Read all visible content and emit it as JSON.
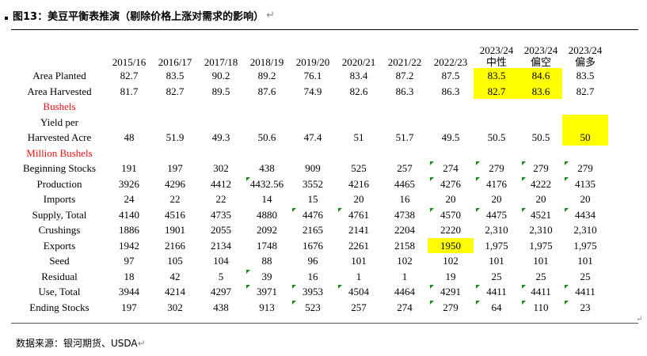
{
  "title": "图13：美豆平衡表推演（剔除价格上涨对需求的影响）",
  "para_mark": "↵",
  "source": "数据来源：银河期货、USDA",
  "columns": [
    "2015/16",
    "2016/17",
    "2017/18",
    "2018/19",
    "2019/20",
    "2020/21",
    "2021/22",
    "2022/23",
    "2023/24\n中性",
    "2023/24\n偏空",
    "2023/24\n偏多"
  ],
  "rows": [
    {
      "label": "Area Planted",
      "values": [
        "82.7",
        "83.5",
        "90.2",
        "89.2",
        "76.1",
        "83.4",
        "87.2",
        "87.5",
        "83.5",
        "84.6",
        "83.5"
      ],
      "highlight": [
        8,
        9
      ],
      "markers": []
    },
    {
      "label": "Area Harvested",
      "values": [
        "81.7",
        "82.7",
        "89.5",
        "87.6",
        "74.9",
        "82.6",
        "86.3",
        "86.3",
        "82.7",
        "83.6",
        "82.7"
      ],
      "highlight": [
        8,
        9
      ],
      "markers": []
    },
    {
      "section": "Bushels"
    },
    {
      "label": "Yield per",
      "values": [
        "",
        "",
        "",
        "",
        "",
        "",
        "",
        "",
        "",
        "",
        ""
      ],
      "highlight": [
        10
      ],
      "markers": []
    },
    {
      "label": "Harvested Acre",
      "values": [
        "48",
        "51.9",
        "49.3",
        "50.6",
        "47.4",
        "51",
        "51.7",
        "49.5",
        "50.5",
        "50.5",
        "50"
      ],
      "highlight": [
        10
      ],
      "markers": []
    },
    {
      "section": "Million Bushels"
    },
    {
      "label": "Beginning Stocks",
      "values": [
        "191",
        "197",
        "302",
        "438",
        "909",
        "525",
        "257",
        "274",
        "279",
        "279",
        "279"
      ],
      "highlight": [],
      "markers": [
        7,
        8,
        9,
        10
      ]
    },
    {
      "label": "Production",
      "values": [
        "3926",
        "4296",
        "4412",
        "4432.56",
        "3552",
        "4216",
        "4465",
        "4276",
        "4176",
        "4222",
        "4135"
      ],
      "highlight": [],
      "markers": [
        3,
        7,
        8,
        9,
        10
      ]
    },
    {
      "label": "Imports",
      "values": [
        "24",
        "22",
        "22",
        "14",
        "15",
        "20",
        "16",
        "20",
        "20",
        "20",
        "20"
      ],
      "highlight": [],
      "markers": []
    },
    {
      "label": "Supply, Total",
      "values": [
        "4140",
        "4516",
        "4735",
        "4880",
        "4476",
        "4761",
        "4738",
        "4570",
        "4475",
        "4521",
        "4434"
      ],
      "highlight": [],
      "markers": [
        4,
        5,
        7,
        8,
        9,
        10
      ]
    },
    {
      "label": "Crushings",
      "values": [
        "1886",
        "1901",
        "2055",
        "2092",
        "2165",
        "2141",
        "2204",
        "2220",
        "2,310",
        "2,310",
        "2,310"
      ],
      "highlight": [],
      "markers": []
    },
    {
      "label": "Exports",
      "values": [
        "1942",
        "2166",
        "2134",
        "1748",
        "1676",
        "2261",
        "2158",
        "1950",
        "1,975",
        "1,975",
        "1,975"
      ],
      "highlight": [
        7
      ],
      "markers": []
    },
    {
      "label": "Seed",
      "values": [
        "97",
        "105",
        "104",
        "88",
        "96",
        "101",
        "102",
        "102",
        "101",
        "101",
        "101"
      ],
      "highlight": [],
      "markers": []
    },
    {
      "label": "Residual",
      "values": [
        "18",
        "42",
        "5",
        "39",
        "16",
        "1",
        "1",
        "19",
        "25",
        "25",
        "25"
      ],
      "highlight": [],
      "markers": [
        3
      ]
    },
    {
      "label": "Use, Total",
      "values": [
        "3944",
        "4214",
        "4297",
        "3971",
        "3953",
        "4504",
        "4464",
        "4291",
        "4411",
        "4411",
        "4411"
      ],
      "highlight": [],
      "markers": [
        3,
        4,
        5,
        7,
        8,
        9,
        10
      ]
    },
    {
      "label": "Ending Stocks",
      "values": [
        "197",
        "302",
        "438",
        "913",
        "523",
        "257",
        "274",
        "279",
        "64",
        "110",
        "23"
      ],
      "highlight": [],
      "markers": [
        4,
        7,
        8,
        9,
        10
      ]
    }
  ],
  "colors": {
    "highlight": "#ffff00",
    "section": "#ee1111",
    "marker": "#1a8a1a"
  }
}
